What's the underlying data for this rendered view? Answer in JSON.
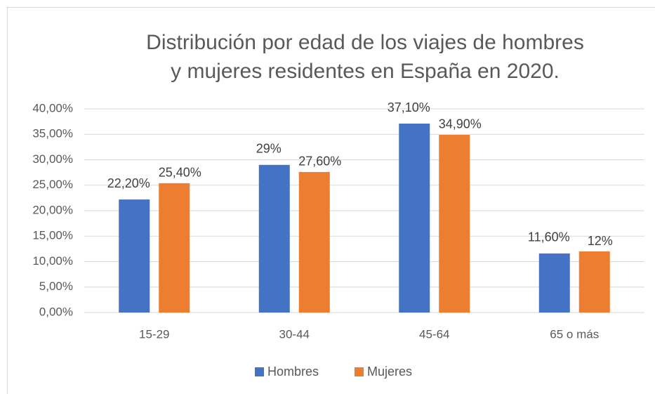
{
  "chart_data": {
    "type": "bar",
    "title": [
      "Distribución por edad de los viajes de hombres",
      "y mujeres residentes en España en 2020."
    ],
    "categories": [
      "15-29",
      "30-44",
      "45-64",
      "65 o más"
    ],
    "series": [
      {
        "name": "Hombres",
        "color": "#4472c4",
        "values": [
          22.2,
          29,
          37.1,
          11.6
        ],
        "value_labels": [
          "22,20%",
          "29%",
          "37,10%",
          "11,60%"
        ]
      },
      {
        "name": "Mujeres",
        "color": "#ed7d31",
        "values": [
          25.4,
          27.6,
          34.9,
          12
        ],
        "value_labels": [
          "25,40%",
          "27,60%",
          "34,90%",
          "12%"
        ]
      }
    ],
    "ylim": [
      0,
      40
    ],
    "yticks": [
      {
        "value": 0,
        "label": "0,00%"
      },
      {
        "value": 5,
        "label": "5,00%"
      },
      {
        "value": 10,
        "label": "10,00%"
      },
      {
        "value": 15,
        "label": "15,00%"
      },
      {
        "value": 20,
        "label": "20,00%"
      },
      {
        "value": 25,
        "label": "25,00%"
      },
      {
        "value": 30,
        "label": "30,00%"
      },
      {
        "value": 35,
        "label": "35,00%"
      },
      {
        "value": 40,
        "label": "40,00%"
      }
    ],
    "grid": true,
    "legend": "bottom"
  }
}
